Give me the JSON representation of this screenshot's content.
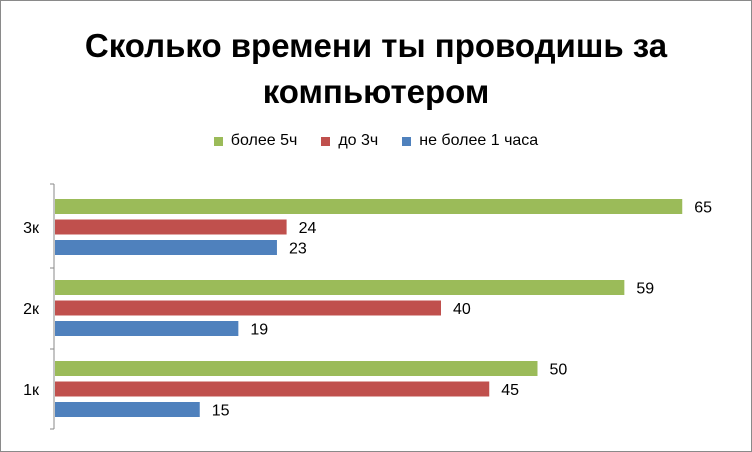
{
  "chart_data": {
    "type": "bar",
    "orientation": "horizontal",
    "title": "Сколько времени ты проводишь за компьютером",
    "title_lines": [
      "Сколько времени ты проводишь за",
      "компьютером"
    ],
    "categories": [
      "3к",
      "2к",
      "1к"
    ],
    "series": [
      {
        "name": "более 5ч",
        "color": "#9BBB59",
        "values": [
          65,
          59,
          50
        ]
      },
      {
        "name": "до 3ч",
        "color": "#C0504D",
        "values": [
          24,
          40,
          45
        ]
      },
      {
        "name": "не более 1 часа",
        "color": "#4F81BD",
        "values": [
          23,
          19,
          15
        ]
      }
    ],
    "xlim": [
      0,
      70
    ],
    "grid": false,
    "legend_position": "top",
    "data_labels": true
  }
}
